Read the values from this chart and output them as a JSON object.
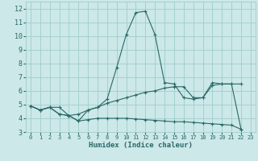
{
  "xlabel": "Humidex (Indice chaleur)",
  "xlim": [
    -0.5,
    23.5
  ],
  "ylim": [
    3,
    12.5
  ],
  "yticks": [
    3,
    4,
    5,
    6,
    7,
    8,
    9,
    10,
    11,
    12
  ],
  "xticks": [
    0,
    1,
    2,
    3,
    4,
    5,
    6,
    7,
    8,
    9,
    10,
    11,
    12,
    13,
    14,
    15,
    16,
    17,
    18,
    19,
    20,
    21,
    22,
    23
  ],
  "bg_color": "#cce8e8",
  "grid_color": "#a0cccc",
  "line_color": "#2a6868",
  "line1_x": [
    0,
    1,
    2,
    3,
    4,
    5,
    6,
    7,
    8,
    9,
    10,
    11,
    12,
    13,
    14,
    15,
    16,
    17,
    18,
    19,
    20,
    21,
    22
  ],
  "line1_y": [
    4.9,
    4.6,
    4.8,
    4.8,
    4.2,
    3.8,
    4.6,
    4.8,
    5.4,
    7.7,
    10.1,
    11.7,
    11.8,
    10.1,
    6.6,
    6.5,
    5.5,
    5.4,
    5.5,
    6.6,
    6.5,
    6.5,
    3.2
  ],
  "line2_x": [
    0,
    1,
    2,
    3,
    4,
    5,
    6,
    7,
    8,
    9,
    10,
    11,
    12,
    13,
    14,
    15,
    16,
    17,
    18,
    19,
    20,
    21,
    22
  ],
  "line2_y": [
    4.9,
    4.6,
    4.8,
    4.3,
    4.2,
    4.3,
    4.6,
    4.8,
    5.1,
    5.3,
    5.5,
    5.7,
    5.9,
    6.0,
    6.2,
    6.3,
    6.3,
    5.5,
    5.5,
    6.4,
    6.5,
    6.5,
    6.5
  ],
  "line3_x": [
    0,
    1,
    2,
    3,
    4,
    5,
    6,
    7,
    8,
    9,
    10,
    11,
    12,
    13,
    14,
    15,
    16,
    17,
    18,
    19,
    20,
    21,
    22
  ],
  "line3_y": [
    4.9,
    4.6,
    4.8,
    4.3,
    4.2,
    3.8,
    3.9,
    4.0,
    4.0,
    4.0,
    4.0,
    3.95,
    3.9,
    3.85,
    3.8,
    3.75,
    3.75,
    3.7,
    3.65,
    3.6,
    3.55,
    3.5,
    3.2
  ]
}
